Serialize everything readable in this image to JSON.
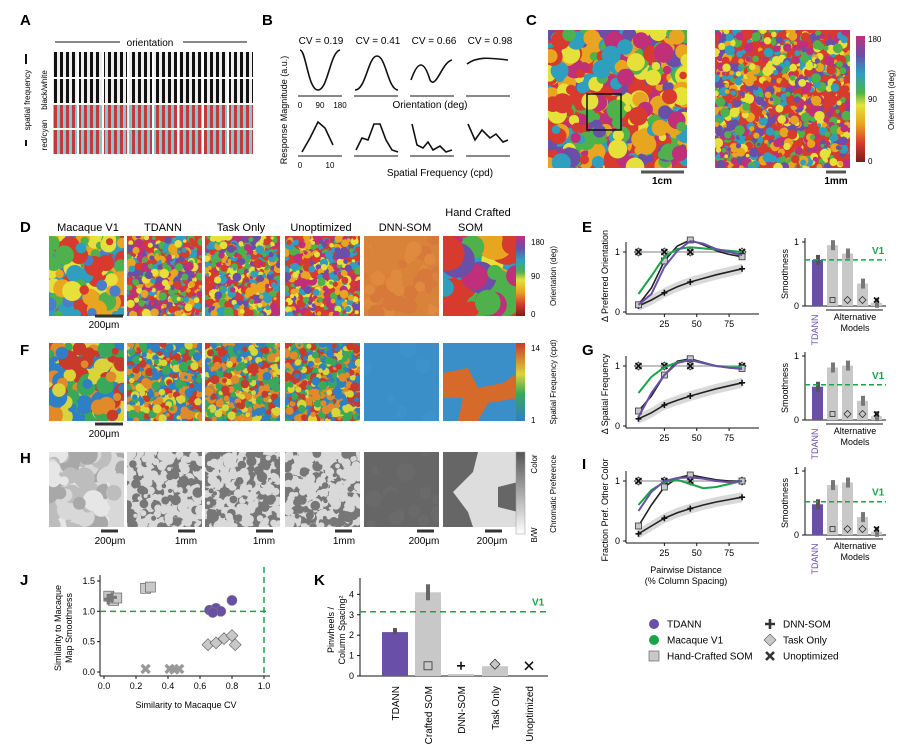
{
  "panels": {
    "A": {
      "label": "A",
      "title": "orientation",
      "rows_label_top": "black/white",
      "rows_label_bottom": "red/cyan",
      "ylabel": "spatial frequency"
    },
    "B": {
      "label": "B",
      "cv_values": [
        "CV = 0.19",
        "CV = 0.41",
        "CV = 0.66",
        "CV = 0.98"
      ],
      "ylabel": "Response Magnitude (a.u.)",
      "xlabel_top": "Orientation (deg)",
      "xlabel_bottom": "Spatial Frequency (cpd)",
      "xticks_top": [
        "0",
        "90",
        "180"
      ],
      "xticks_bottom": [
        "0",
        "10"
      ]
    },
    "C": {
      "label": "C",
      "scale_left": "1cm",
      "scale_right": "1mm",
      "colorbar_label": "Orientation (deg)",
      "colorbar_ticks": [
        "180",
        "90",
        "0"
      ]
    },
    "D": {
      "label": "D",
      "columns": [
        "Macaque V1",
        "TDANN",
        "Task Only",
        "Unoptimized",
        "DNN-SOM",
        "Hand Crafted SOM"
      ],
      "scale": "200μm",
      "colorbar_label": "Orientation (deg)",
      "colorbar_ticks": [
        "180",
        "90",
        "0"
      ]
    },
    "F": {
      "label": "F",
      "scale": "200μm",
      "colorbar_label": "Spatial Frequency (cpd)",
      "colorbar_ticks": [
        "14",
        "1"
      ]
    },
    "H": {
      "label": "H",
      "scales": [
        "200μm",
        "1mm",
        "1mm",
        "1mm",
        "200μm",
        "200μm"
      ],
      "colorbar_label": "Chromatic Preference",
      "colorbar_ticks": [
        "Color",
        "B/W"
      ]
    },
    "E": {
      "label": "E",
      "ylabel": "Δ Preferred Orientation"
    },
    "G": {
      "label": "G",
      "ylabel": "Δ Spatial Frequency"
    },
    "I": {
      "label": "I",
      "ylabel": "Fraction Pref. Other Color",
      "xlabel": "Pairwise Distance (% Column Spacing)"
    },
    "J": {
      "label": "J",
      "ylabel": "Similarity to Macaque Map Smoothness",
      "xlabel": "Similarity to Macaque CV"
    },
    "K": {
      "label": "K",
      "ylabel": "Pinwheels / Column Spacing²",
      "v1_label": "V1"
    },
    "smooth": {
      "ylabel": "Smoothness",
      "tdann": "TDANN",
      "alt": "Alternative Models",
      "v1": "V1"
    }
  },
  "legend": [
    {
      "name": "TDANN",
      "marker": "circle",
      "color": "#6a4fa8"
    },
    {
      "name": "Macaque V1",
      "marker": "circle",
      "color": "#1aa34a"
    },
    {
      "name": "Hand-Crafted SOM",
      "marker": "square",
      "color": "#c8c8c8"
    },
    {
      "name": "DNN-SOM",
      "marker": "plus",
      "color": "#ffffff"
    },
    {
      "name": "Task Only",
      "marker": "diamond",
      "color": "#c8c8c8"
    },
    {
      "name": "Unoptimized",
      "marker": "cross",
      "color": "#ffffff"
    }
  ],
  "colors": {
    "tdann": "#6a4fa8",
    "v1": "#1aa34a",
    "gray": "#c8c8c8",
    "dark": "#222222",
    "green_dash": "#1aa34a"
  },
  "chart_data": [
    {
      "panel": "E",
      "type": "line",
      "x": [
        5,
        15,
        25,
        35,
        45,
        55,
        65,
        75,
        85
      ],
      "xticks": [
        25,
        50,
        75
      ],
      "yticks": [
        0,
        1
      ],
      "series": [
        {
          "name": "TDANN",
          "values": [
            0.12,
            0.3,
            0.75,
            1.02,
            1.18,
            1.14,
            1.05,
            1.0,
            0.95
          ]
        },
        {
          "name": "Macaque V1",
          "values": [
            0.3,
            0.6,
            0.92,
            1.05,
            1.08,
            1.06,
            1.04,
            1.02,
            1.0
          ]
        },
        {
          "name": "Hand-Crafted SOM",
          "values": [
            0.12,
            0.4,
            0.85,
            1.1,
            1.2,
            1.12,
            1.02,
            0.96,
            0.92
          ]
        },
        {
          "name": "DNN-SOM",
          "values": [
            0.1,
            0.2,
            0.32,
            0.42,
            0.5,
            0.56,
            0.62,
            0.67,
            0.72
          ]
        },
        {
          "name": "Task Only",
          "values": [
            1.0,
            1.0,
            1.0,
            1.0,
            1.0,
            1.0,
            1.0,
            1.0,
            1.0
          ]
        },
        {
          "name": "Unoptimized",
          "values": [
            1.0,
            1.0,
            1.0,
            1.0,
            1.0,
            1.0,
            1.0,
            1.0,
            1.0
          ]
        }
      ]
    },
    {
      "panel": "E-smoothness",
      "type": "bar",
      "categories": [
        "TDANN",
        "Hand-Crafted SOM",
        "Task Only",
        "DNN-SOM",
        "Unoptimized"
      ],
      "values": [
        0.72,
        0.95,
        0.82,
        0.35,
        0.05
      ],
      "v1": 0.72,
      "yticks": [
        0,
        1
      ]
    },
    {
      "panel": "G",
      "type": "line",
      "x": [
        5,
        15,
        25,
        35,
        45,
        55,
        65,
        75,
        85
      ],
      "xticks": [
        25,
        50,
        75
      ],
      "yticks": [
        0,
        1
      ],
      "series": [
        {
          "name": "TDANN",
          "values": [
            0.15,
            0.55,
            0.85,
            1.05,
            1.1,
            1.05,
            1.0,
            0.97,
            0.95
          ]
        },
        {
          "name": "Macaque V1",
          "values": [
            0.55,
            0.82,
            0.98,
            1.06,
            1.1,
            1.05,
            1.0,
            0.98,
            0.98
          ]
        },
        {
          "name": "Hand-Crafted SOM",
          "values": [
            0.25,
            0.5,
            0.85,
            1.08,
            1.12,
            1.06,
            1.0,
            0.97,
            0.96
          ]
        },
        {
          "name": "DNN-SOM",
          "values": [
            0.12,
            0.22,
            0.35,
            0.43,
            0.5,
            0.56,
            0.62,
            0.67,
            0.72
          ]
        },
        {
          "name": "Task Only",
          "values": [
            1.0,
            1.0,
            1.0,
            1.0,
            1.0,
            1.0,
            1.0,
            1.0,
            1.0
          ]
        },
        {
          "name": "Unoptimized",
          "values": [
            1.0,
            1.0,
            1.0,
            1.0,
            1.0,
            1.0,
            1.0,
            1.0,
            1.0
          ]
        }
      ]
    },
    {
      "panel": "G-smoothness",
      "type": "bar",
      "categories": [
        "TDANN",
        "Hand-Crafted SOM",
        "Task Only",
        "DNN-SOM",
        "Unoptimized"
      ],
      "values": [
        0.52,
        0.82,
        0.85,
        0.3,
        0.06
      ],
      "v1": 0.55,
      "yticks": [
        0,
        1
      ]
    },
    {
      "panel": "I",
      "type": "line",
      "x": [
        5,
        15,
        25,
        35,
        45,
        55,
        65,
        75,
        85
      ],
      "xlabel": "Pairwise Distance (% Column Spacing)",
      "xticks": [
        25,
        50,
        75
      ],
      "yticks": [
        0,
        1
      ],
      "series": [
        {
          "name": "TDANN",
          "values": [
            0.5,
            0.82,
            1.0,
            1.05,
            1.06,
            1.04,
            1.0,
            0.98,
            1.0
          ]
        },
        {
          "name": "Macaque V1",
          "values": [
            0.6,
            0.85,
            0.98,
            1.02,
            0.95,
            0.88,
            0.9,
            0.95,
            1.0
          ]
        },
        {
          "name": "Hand-Crafted SOM",
          "values": [
            0.25,
            0.6,
            0.9,
            1.05,
            1.1,
            1.06,
            1.02,
            1.0,
            1.0
          ]
        },
        {
          "name": "DNN-SOM",
          "values": [
            0.12,
            0.25,
            0.38,
            0.47,
            0.54,
            0.6,
            0.65,
            0.69,
            0.73
          ]
        },
        {
          "name": "Task Only",
          "values": [
            1.0,
            1.0,
            1.0,
            1.0,
            1.0,
            1.0,
            1.0,
            1.0,
            1.0
          ]
        },
        {
          "name": "Unoptimized",
          "values": [
            1.0,
            1.0,
            1.0,
            1.0,
            1.0,
            1.0,
            1.0,
            1.0,
            1.0
          ]
        }
      ]
    },
    {
      "panel": "I-smoothness",
      "type": "bar",
      "categories": [
        "TDANN",
        "Hand-Crafted SOM",
        "Task Only",
        "DNN-SOM",
        "Unoptimized"
      ],
      "values": [
        0.48,
        0.78,
        0.82,
        0.28,
        0.05
      ],
      "v1": 0.52,
      "yticks": [
        0,
        1
      ]
    },
    {
      "panel": "J",
      "type": "scatter",
      "xlim": [
        0,
        1.0
      ],
      "ylim": [
        0,
        1.5
      ],
      "xticks": [
        0.0,
        0.2,
        0.4,
        0.6,
        0.8,
        1.0
      ],
      "yticks": [
        0.0,
        0.5,
        1.0,
        1.5
      ],
      "reference": {
        "x": 1.0,
        "y": 1.0
      },
      "series": [
        {
          "name": "TDANN",
          "points": [
            [
              0.66,
              1.02
            ],
            [
              0.7,
              1.05
            ],
            [
              0.73,
              1.0
            ],
            [
              0.68,
              0.98
            ],
            [
              0.8,
              1.18
            ]
          ]
        },
        {
          "name": "Hand-Crafted SOM",
          "points": [
            [
              0.03,
              1.25
            ],
            [
              0.05,
              1.2
            ],
            [
              0.06,
              1.18
            ],
            [
              0.08,
              1.22
            ],
            [
              0.26,
              1.38
            ],
            [
              0.29,
              1.4
            ]
          ]
        },
        {
          "name": "DNN-SOM",
          "points": [
            [
              0.03,
              1.2
            ],
            [
              0.05,
              1.23
            ]
          ]
        },
        {
          "name": "Task Only",
          "points": [
            [
              0.65,
              0.45
            ],
            [
              0.7,
              0.48
            ],
            [
              0.75,
              0.55
            ],
            [
              0.8,
              0.6
            ],
            [
              0.82,
              0.45
            ]
          ]
        },
        {
          "name": "Unoptimized",
          "points": [
            [
              0.26,
              0.05
            ],
            [
              0.41,
              0.05
            ],
            [
              0.44,
              0.04
            ],
            [
              0.47,
              0.05
            ]
          ]
        }
      ]
    },
    {
      "panel": "K",
      "type": "bar",
      "categories": [
        "TDANN",
        "Hand Crafted SOM",
        "DNN-SOM",
        "Task Only",
        "Unoptimized"
      ],
      "values": [
        2.15,
        4.1,
        0.1,
        0.48,
        0.05
      ],
      "v1": 3.15,
      "ylim": [
        0,
        4.8
      ],
      "yticks": [
        0,
        1,
        2,
        3,
        4
      ]
    }
  ]
}
